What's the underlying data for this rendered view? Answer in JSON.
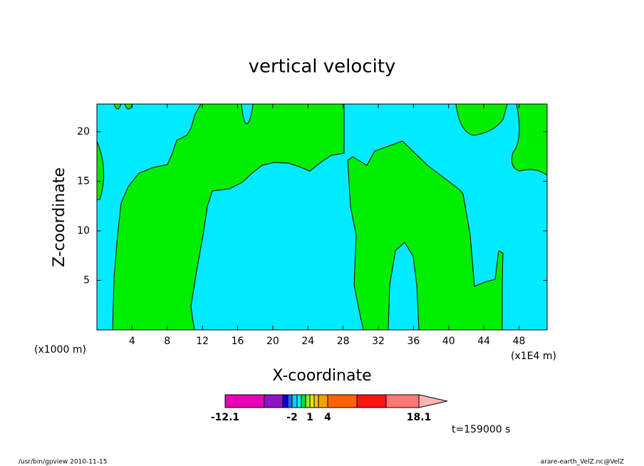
{
  "chart_data": {
    "type": "contour",
    "title": "vertical velocity",
    "x_label": "X-coordinate",
    "y_label": "Z-coordinate",
    "x_unit_label": "(x1E4 m)",
    "y_unit_label": "(x1000 m)",
    "xlim": [
      0,
      51.2
    ],
    "ylim": [
      0,
      22.8
    ],
    "xticks": [
      4,
      8,
      12,
      16,
      20,
      24,
      28,
      32,
      36,
      40,
      44,
      48
    ],
    "yticks": [
      5,
      10,
      15,
      20
    ],
    "colorbar": {
      "colors": [
        "#e600b4",
        "#8c14c8",
        "#0000d2",
        "#1e64ff",
        "#14c8ff",
        "#00f0f0",
        "#00e632",
        "#a0e632",
        "#e6e600",
        "#f0c800",
        "#f0a000",
        "#ff6400",
        "#ff1414",
        "#ff7878"
      ],
      "extend_color": "#ffb4b4",
      "boundary_labels": [
        -12.1,
        null,
        null,
        null,
        -2,
        null,
        null,
        null,
        1,
        null,
        null,
        4,
        null,
        null,
        18.1
      ]
    },
    "time_label": "t=159000 s",
    "footer_left": "/usr/bin/gpview   2010-11-15",
    "footer_right": "arare-earth_VelZ.nc@VelZ"
  }
}
